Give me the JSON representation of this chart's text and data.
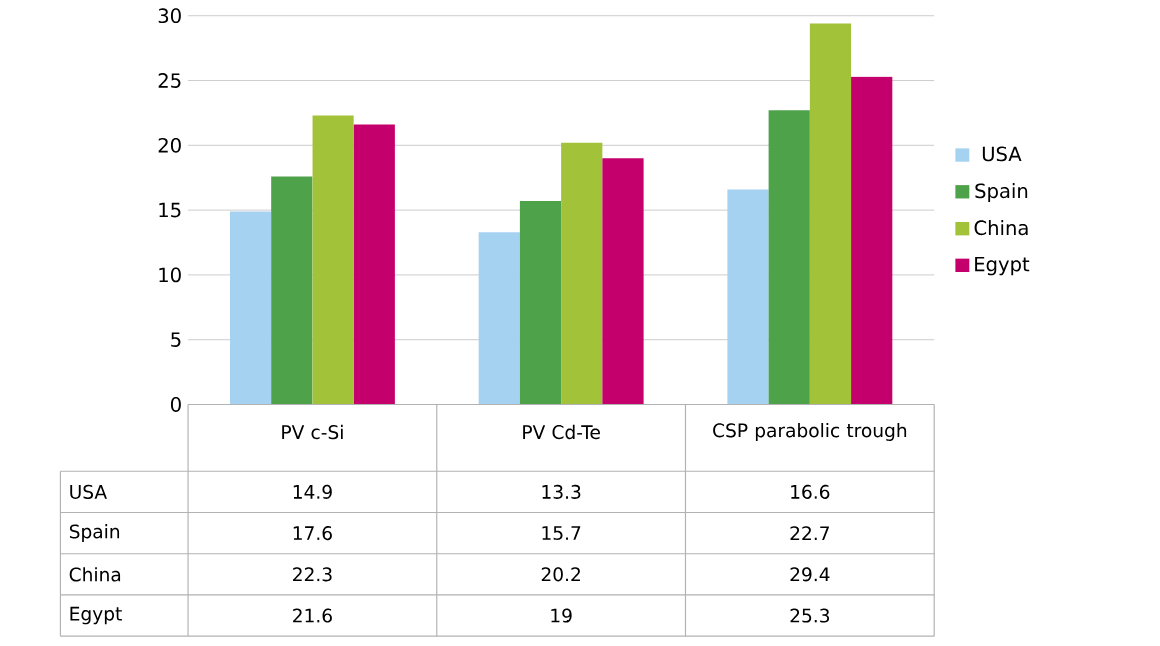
{
  "chart_data": {
    "type": "bar",
    "categories": [
      "PV c-Si",
      "PV Cd-Te",
      "CSP parabolic trough"
    ],
    "series": [
      {
        "name": "USA",
        "color": "#a6d2f2",
        "values": [
          14.9,
          13.3,
          16.6
        ]
      },
      {
        "name": "Spain",
        "color": "#4ea24a",
        "values": [
          17.6,
          15.7,
          22.7
        ]
      },
      {
        "name": "China",
        "color": "#a2c23a",
        "values": [
          22.3,
          20.2,
          29.4
        ]
      },
      {
        "name": "Egypt",
        "color": "#c4006c",
        "values": [
          21.6,
          19,
          25.3
        ]
      }
    ],
    "ylim": [
      0,
      30
    ],
    "yticks": [
      0,
      5,
      10,
      15,
      20,
      25,
      30
    ],
    "grid": "y",
    "legend": "right",
    "data_labels": true
  }
}
